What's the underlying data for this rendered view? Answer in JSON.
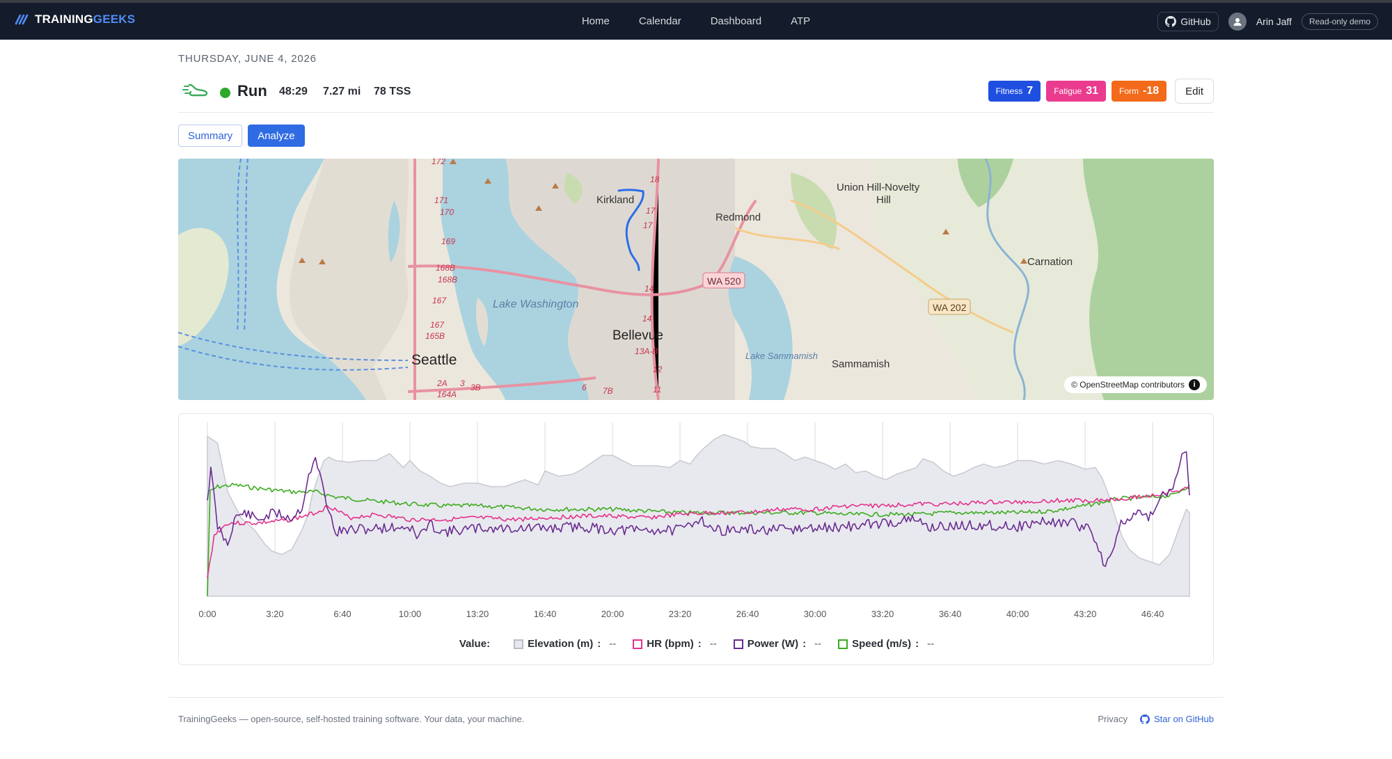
{
  "brand": {
    "part1": "TRAINING",
    "part2": "GEEKS"
  },
  "nav": {
    "items": [
      "Home",
      "Calendar",
      "Dashboard",
      "ATP"
    ]
  },
  "header_right": {
    "github_label": "GitHub",
    "user_name": "Arin Jaff",
    "mode_badge": "Read-only demo"
  },
  "activity": {
    "date": "THURSDAY, JUNE 4, 2026",
    "type": "Run",
    "status_color": "#2ca82a",
    "duration": "48:29",
    "distance": "7.27 mi",
    "tss": "78 TSS"
  },
  "metrics": {
    "fitness": {
      "label": "Fitness",
      "value": "7",
      "color": "#1f4fe0"
    },
    "fatigue": {
      "label": "Fatigue",
      "value": "31",
      "color": "#ea3b8e"
    },
    "form": {
      "label": "Form",
      "value": "-18",
      "color": "#f36a1a"
    },
    "edit_label": "Edit"
  },
  "tabs": {
    "summary": "Summary",
    "analyze": "Analyze",
    "active": "Analyze"
  },
  "map": {
    "attribution": "© OpenStreetMap contributors",
    "labels": {
      "kirkland": "Kirkland",
      "redmond": "Redmond",
      "union_hill": "Union Hill-Novelty",
      "hill": "Hill",
      "carnation": "Carnation",
      "lake_washington": "Lake Washington",
      "bellevue": "Bellevue",
      "seattle": "Seattle",
      "lake_sammamish": "Lake Sammamish",
      "sammamish": "Sammamish",
      "wa520": "WA 520",
      "wa202": "WA 202",
      "e172": "172",
      "e171": "171",
      "e170": "170",
      "e169": "169",
      "e168b1": "168B",
      "e168b2": "168B",
      "e167a": "167",
      "e167b": "167",
      "e165b": "165B",
      "e2a": "2A",
      "e3": "3",
      "e3b": "3B",
      "e164a": "164A",
      "e6": "6",
      "e7b": "7B",
      "e18": "18",
      "e17a": "17",
      "e17b": "17",
      "e14a": "14",
      "e14b": "14",
      "e13ab": "13A-B",
      "e12": "12",
      "e11": "11"
    }
  },
  "chart_data": {
    "type": "line",
    "x_unit": "elapsed time (m:ss)",
    "x_ticks": [
      "0:00",
      "3:20",
      "6:40",
      "10:00",
      "13:20",
      "16:40",
      "20:00",
      "23:20",
      "26:40",
      "30:00",
      "33:20",
      "36:40",
      "40:00",
      "43:20",
      "46:40"
    ],
    "x_range_seconds": [
      0,
      2909
    ],
    "legend_prefix": "Value:",
    "series": [
      {
        "name": "Elevation (m)",
        "color": "#c7cad1",
        "fill": "#e8e9ee",
        "kind": "area",
        "value": "--",
        "points": [
          [
            0,
            0.08
          ],
          [
            30,
            0.12
          ],
          [
            60,
            0.4
          ],
          [
            100,
            0.55
          ],
          [
            140,
            0.62
          ],
          [
            170,
            0.7
          ],
          [
            190,
            0.74
          ],
          [
            220,
            0.76
          ],
          [
            250,
            0.73
          ],
          [
            280,
            0.62
          ],
          [
            300,
            0.52
          ],
          [
            310,
            0.42
          ],
          [
            330,
            0.3
          ],
          [
            345,
            0.22
          ],
          [
            360,
            0.2
          ],
          [
            380,
            0.22
          ],
          [
            420,
            0.23
          ],
          [
            460,
            0.22
          ],
          [
            500,
            0.22
          ],
          [
            520,
            0.2
          ],
          [
            540,
            0.18
          ],
          [
            560,
            0.22
          ],
          [
            580,
            0.26
          ],
          [
            600,
            0.22
          ],
          [
            630,
            0.28
          ],
          [
            660,
            0.31
          ],
          [
            690,
            0.35
          ],
          [
            720,
            0.37
          ],
          [
            760,
            0.35
          ],
          [
            800,
            0.35
          ],
          [
            840,
            0.37
          ],
          [
            880,
            0.37
          ],
          [
            910,
            0.35
          ],
          [
            940,
            0.33
          ],
          [
            980,
            0.36
          ],
          [
            1000,
            0.28
          ],
          [
            1040,
            0.31
          ],
          [
            1080,
            0.3
          ],
          [
            1110,
            0.27
          ],
          [
            1140,
            0.23
          ],
          [
            1170,
            0.19
          ],
          [
            1200,
            0.19
          ],
          [
            1230,
            0.22
          ],
          [
            1260,
            0.25
          ],
          [
            1300,
            0.25
          ],
          [
            1330,
            0.25
          ],
          [
            1370,
            0.26
          ],
          [
            1400,
            0.22
          ],
          [
            1430,
            0.24
          ],
          [
            1450,
            0.19
          ],
          [
            1470,
            0.15
          ],
          [
            1500,
            0.1
          ],
          [
            1530,
            0.07
          ],
          [
            1560,
            0.09
          ],
          [
            1590,
            0.11
          ],
          [
            1610,
            0.14
          ],
          [
            1640,
            0.15
          ],
          [
            1680,
            0.15
          ],
          [
            1710,
            0.18
          ],
          [
            1740,
            0.22
          ],
          [
            1770,
            0.2
          ],
          [
            1800,
            0.22
          ],
          [
            1830,
            0.24
          ],
          [
            1860,
            0.27
          ],
          [
            1890,
            0.24
          ],
          [
            1920,
            0.29
          ],
          [
            1950,
            0.28
          ],
          [
            1980,
            0.31
          ],
          [
            2010,
            0.33
          ],
          [
            2040,
            0.3
          ],
          [
            2070,
            0.28
          ],
          [
            2100,
            0.26
          ],
          [
            2120,
            0.21
          ],
          [
            2150,
            0.23
          ],
          [
            2180,
            0.28
          ],
          [
            2210,
            0.31
          ],
          [
            2240,
            0.29
          ],
          [
            2270,
            0.26
          ],
          [
            2300,
            0.24
          ],
          [
            2330,
            0.26
          ],
          [
            2360,
            0.25
          ],
          [
            2400,
            0.22
          ],
          [
            2440,
            0.22
          ],
          [
            2480,
            0.24
          ],
          [
            2520,
            0.22
          ],
          [
            2560,
            0.24
          ],
          [
            2600,
            0.27
          ],
          [
            2630,
            0.26
          ],
          [
            2650,
            0.32
          ],
          [
            2670,
            0.42
          ],
          [
            2690,
            0.55
          ],
          [
            2710,
            0.66
          ],
          [
            2730,
            0.73
          ],
          [
            2760,
            0.78
          ],
          [
            2790,
            0.8
          ],
          [
            2820,
            0.82
          ],
          [
            2850,
            0.76
          ],
          [
            2880,
            0.6
          ],
          [
            2900,
            0.5
          ],
          [
            2909,
            0.52
          ]
        ]
      },
      {
        "name": "HR (bpm)",
        "color": "#e4318c",
        "kind": "line",
        "value": "--",
        "points": [
          [
            0,
            0.9
          ],
          [
            20,
            0.65
          ],
          [
            60,
            0.58
          ],
          [
            150,
            0.58
          ],
          [
            250,
            0.56
          ],
          [
            320,
            0.52
          ],
          [
            360,
            0.48
          ],
          [
            420,
            0.55
          ],
          [
            500,
            0.53
          ],
          [
            600,
            0.56
          ],
          [
            700,
            0.56
          ],
          [
            800,
            0.55
          ],
          [
            900,
            0.56
          ],
          [
            1000,
            0.55
          ],
          [
            1100,
            0.54
          ],
          [
            1200,
            0.54
          ],
          [
            1300,
            0.55
          ],
          [
            1400,
            0.53
          ],
          [
            1500,
            0.52
          ],
          [
            1600,
            0.52
          ],
          [
            1700,
            0.5
          ],
          [
            1800,
            0.5
          ],
          [
            1900,
            0.48
          ],
          [
            2000,
            0.48
          ],
          [
            2100,
            0.47
          ],
          [
            2200,
            0.47
          ],
          [
            2300,
            0.46
          ],
          [
            2400,
            0.46
          ],
          [
            2500,
            0.45
          ],
          [
            2600,
            0.45
          ],
          [
            2700,
            0.44
          ],
          [
            2800,
            0.42
          ],
          [
            2860,
            0.4
          ],
          [
            2909,
            0.38
          ]
        ]
      },
      {
        "name": "Power (W)",
        "color": "#6a2c91",
        "kind": "line",
        "value": "--",
        "points": [
          [
            0,
            0.44
          ],
          [
            10,
            0.27
          ],
          [
            30,
            0.6
          ],
          [
            60,
            0.7
          ],
          [
            80,
            0.55
          ],
          [
            110,
            0.52
          ],
          [
            150,
            0.56
          ],
          [
            200,
            0.52
          ],
          [
            250,
            0.55
          ],
          [
            280,
            0.49
          ],
          [
            300,
            0.3
          ],
          [
            320,
            0.22
          ],
          [
            340,
            0.35
          ],
          [
            360,
            0.52
          ],
          [
            380,
            0.63
          ],
          [
            420,
            0.62
          ],
          [
            500,
            0.61
          ],
          [
            600,
            0.6
          ],
          [
            620,
            0.66
          ],
          [
            660,
            0.59
          ],
          [
            700,
            0.63
          ],
          [
            800,
            0.61
          ],
          [
            900,
            0.61
          ],
          [
            1000,
            0.61
          ],
          [
            1100,
            0.6
          ],
          [
            1200,
            0.62
          ],
          [
            1300,
            0.62
          ],
          [
            1400,
            0.62
          ],
          [
            1460,
            0.55
          ],
          [
            1500,
            0.62
          ],
          [
            1600,
            0.62
          ],
          [
            1700,
            0.62
          ],
          [
            1800,
            0.61
          ],
          [
            1900,
            0.6
          ],
          [
            2000,
            0.58
          ],
          [
            2100,
            0.56
          ],
          [
            2130,
            0.6
          ],
          [
            2200,
            0.6
          ],
          [
            2300,
            0.59
          ],
          [
            2400,
            0.6
          ],
          [
            2480,
            0.57
          ],
          [
            2560,
            0.58
          ],
          [
            2620,
            0.62
          ],
          [
            2640,
            0.74
          ],
          [
            2660,
            0.82
          ],
          [
            2680,
            0.74
          ],
          [
            2700,
            0.6
          ],
          [
            2750,
            0.53
          ],
          [
            2800,
            0.54
          ],
          [
            2820,
            0.44
          ],
          [
            2860,
            0.38
          ],
          [
            2880,
            0.22
          ],
          [
            2900,
            0.18
          ],
          [
            2909,
            0.42
          ]
        ]
      },
      {
        "name": "Speed (m/s)",
        "color": "#3bab1e",
        "kind": "line",
        "value": "--",
        "points": [
          [
            0,
            1.0
          ],
          [
            8,
            0.4
          ],
          [
            30,
            0.37
          ],
          [
            80,
            0.36
          ],
          [
            150,
            0.38
          ],
          [
            250,
            0.4
          ],
          [
            320,
            0.4
          ],
          [
            380,
            0.43
          ],
          [
            480,
            0.45
          ],
          [
            600,
            0.47
          ],
          [
            700,
            0.48
          ],
          [
            800,
            0.48
          ],
          [
            900,
            0.49
          ],
          [
            1000,
            0.5
          ],
          [
            1100,
            0.5
          ],
          [
            1200,
            0.5
          ],
          [
            1300,
            0.51
          ],
          [
            1400,
            0.52
          ],
          [
            1500,
            0.52
          ],
          [
            1600,
            0.52
          ],
          [
            1700,
            0.52
          ],
          [
            1800,
            0.52
          ],
          [
            1900,
            0.53
          ],
          [
            2000,
            0.53
          ],
          [
            2100,
            0.53
          ],
          [
            2200,
            0.52
          ],
          [
            2300,
            0.52
          ],
          [
            2400,
            0.52
          ],
          [
            2500,
            0.51
          ],
          [
            2600,
            0.48
          ],
          [
            2700,
            0.44
          ],
          [
            2800,
            0.43
          ],
          [
            2860,
            0.42
          ],
          [
            2909,
            0.36
          ]
        ]
      }
    ]
  },
  "footer": {
    "left_text": "TrainingGeeks — open-source, self-hosted training software. Your data, your machine.",
    "privacy": "Privacy",
    "star": "Star on GitHub"
  }
}
